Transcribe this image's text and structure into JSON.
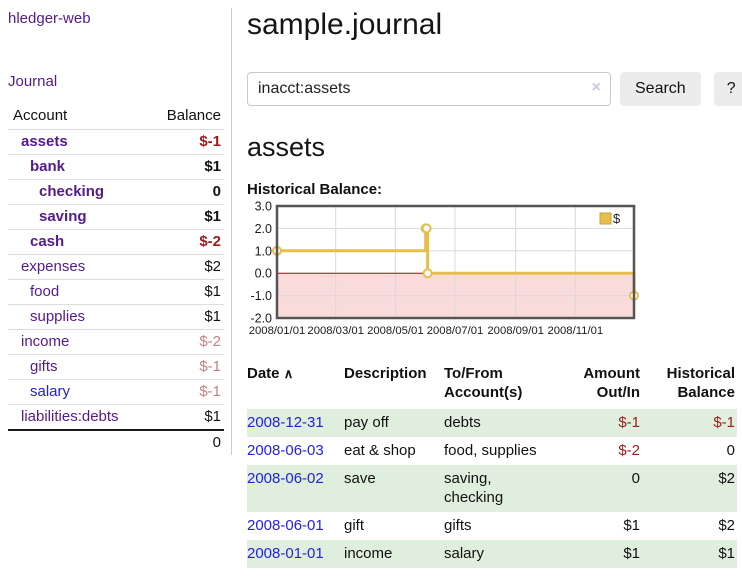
{
  "sidebar": {
    "brand": "hledger-web",
    "journal_link": "Journal",
    "accounts": {
      "header_account": "Account",
      "header_balance": "Balance",
      "rows": [
        {
          "name": "assets",
          "indent": 1,
          "bold": true,
          "blue": false,
          "balance": "$-1",
          "neg": "strong"
        },
        {
          "name": "bank",
          "indent": 2,
          "bold": true,
          "blue": false,
          "balance": "$1",
          "neg": "none"
        },
        {
          "name": "checking",
          "indent": 3,
          "bold": true,
          "blue": false,
          "balance": "0",
          "neg": "none"
        },
        {
          "name": "saving",
          "indent": 3,
          "bold": true,
          "blue": false,
          "balance": "$1",
          "neg": "none"
        },
        {
          "name": "cash",
          "indent": 2,
          "bold": true,
          "blue": false,
          "balance": "$-2",
          "neg": "strong"
        },
        {
          "name": "expenses",
          "indent": 1,
          "bold": false,
          "blue": false,
          "balance": "$2",
          "neg": "none"
        },
        {
          "name": "food",
          "indent": 2,
          "bold": false,
          "blue": false,
          "balance": "$1",
          "neg": "none"
        },
        {
          "name": "supplies",
          "indent": 2,
          "bold": false,
          "blue": false,
          "balance": "$1",
          "neg": "none"
        },
        {
          "name": "income",
          "indent": 1,
          "bold": false,
          "blue": false,
          "balance": "$-2",
          "neg": "muted"
        },
        {
          "name": "gifts",
          "indent": 2,
          "bold": false,
          "blue": false,
          "balance": "$-1",
          "neg": "muted"
        },
        {
          "name": "salary",
          "indent": 2,
          "bold": false,
          "blue": true,
          "balance": "$-1",
          "neg": "muted"
        },
        {
          "name": "liabilities:debts",
          "indent": 1,
          "bold": false,
          "blue": false,
          "balance": "$1",
          "neg": "none"
        }
      ],
      "total": "0"
    }
  },
  "main": {
    "title": "sample.journal",
    "search": {
      "value": "inacct:assets",
      "clear_icon": "×",
      "search_label": "Search",
      "help_label": "?"
    },
    "account_heading": "assets",
    "chart_heading": "Historical Balance:",
    "register": {
      "headers": {
        "date": "Date",
        "sort_icon": "∧",
        "description": "Description",
        "accounts": "To/From Account(s)",
        "amount": "Amount Out/In",
        "balance": "Historical Balance"
      },
      "rows": [
        {
          "date": "2008-12-31",
          "description": "pay off",
          "accounts": "debts",
          "amount": "$-1",
          "amount_neg": true,
          "balance": "$-1",
          "balance_neg": true
        },
        {
          "date": "2008-06-03",
          "description": "eat & shop",
          "accounts": "food, supplies",
          "amount": "$-2",
          "amount_neg": true,
          "balance": "0",
          "balance_neg": false
        },
        {
          "date": "2008-06-02",
          "description": "save",
          "accounts": "saving, checking",
          "amount": "0",
          "amount_neg": false,
          "balance": "$2",
          "balance_neg": false
        },
        {
          "date": "2008-06-01",
          "description": "gift",
          "accounts": "gifts",
          "amount": "$1",
          "amount_neg": false,
          "balance": "$2",
          "balance_neg": false
        },
        {
          "date": "2008-01-01",
          "description": "income",
          "accounts": "salary",
          "amount": "$1",
          "amount_neg": false,
          "balance": "$1",
          "balance_neg": false
        }
      ]
    }
  },
  "chart_data": {
    "type": "line",
    "step": true,
    "title": "Historical Balance",
    "x_domain": [
      "2008/01/01",
      "2008/12/31"
    ],
    "ylim": [
      -2,
      3
    ],
    "y_ticks": [
      "3.0",
      "2.0",
      "1.0",
      "0.0",
      "-1.0",
      "-2.0"
    ],
    "x_ticks": [
      "2008/01/01",
      "2008/03/01",
      "2008/05/01",
      "2008/07/01",
      "2008/09/01",
      "2008/11/01"
    ],
    "series": [
      {
        "name": "$",
        "color": "#e4bf4b",
        "points": [
          [
            "2008-01-01",
            1
          ],
          [
            "2008-06-01",
            2
          ],
          [
            "2008-06-02",
            2
          ],
          [
            "2008-06-03",
            0
          ],
          [
            "2008-12-31",
            -1
          ]
        ]
      }
    ],
    "grid": true,
    "legend_position": "top-right",
    "plot_border_color": "#555555",
    "grid_color": "#d9d9d9",
    "negative_region_color": "#fadbdb",
    "zero_line_color": "#991414"
  },
  "colors": {
    "link_purple": "#551a8b",
    "link_blue": "#2222dd",
    "negative_strong": "#9b1c1c",
    "negative_muted": "#c08383",
    "row_green": "#e0eedd",
    "accent_gold": "#e4bf4b"
  }
}
